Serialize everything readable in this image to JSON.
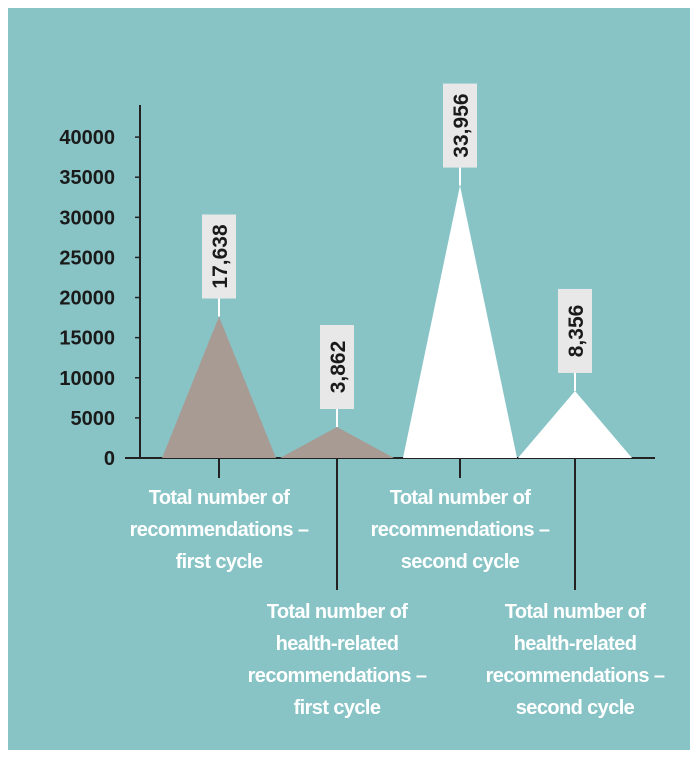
{
  "chart_data": {
    "type": "triangle",
    "categories": [
      "Total number of recommendations – first cycle",
      "Total number of health-related recommendations – first cycle",
      "Total number of recommendations – second cycle",
      "Total number of health-related recommendations – second cycle"
    ],
    "values": [
      17638,
      3862,
      33956,
      8356
    ],
    "value_labels": [
      "17,638",
      "3,862",
      "33,956",
      "8,356"
    ],
    "colors": [
      "#a89b94",
      "#a89b94",
      "#ffffff",
      "#ffffff"
    ],
    "ylim": [
      0,
      44000
    ],
    "yticks": [
      0,
      5000,
      10000,
      15000,
      20000,
      25000,
      30000,
      35000,
      40000
    ]
  }
}
